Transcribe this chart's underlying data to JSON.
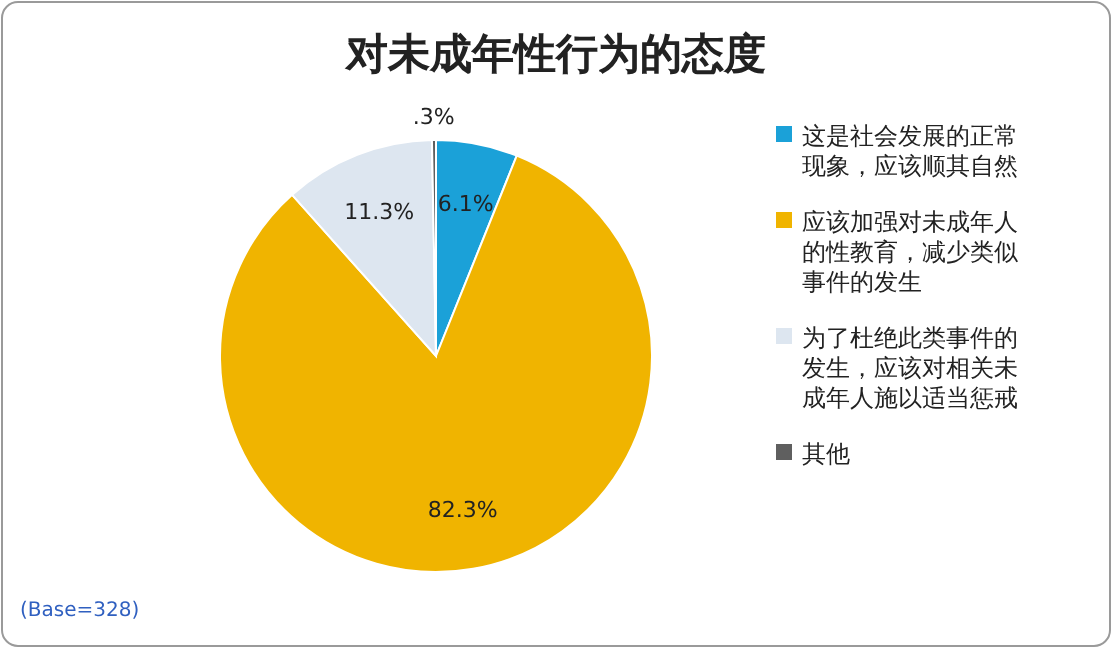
{
  "chart_data": {
    "type": "pie",
    "title": "对未成年性行为的态度",
    "categories": [
      "这是社会发展的正常现象，应该顺其自然",
      "应该加强对未成年人的性教育，减少类似事件的发生",
      "为了杜绝此类事件的发生，应该对相关未成年人施以适当惩戒",
      "其他"
    ],
    "values": [
      6.1,
      82.3,
      11.3,
      0.3
    ],
    "colors": [
      "#1ba1d8",
      "#f0b400",
      "#dde6f0",
      "#5f5f5f"
    ],
    "value_labels": [
      "6.1%",
      "82.3%",
      "11.3%",
      ".3%"
    ],
    "legend": "right",
    "annotations": [
      "(Base=328)"
    ]
  }
}
